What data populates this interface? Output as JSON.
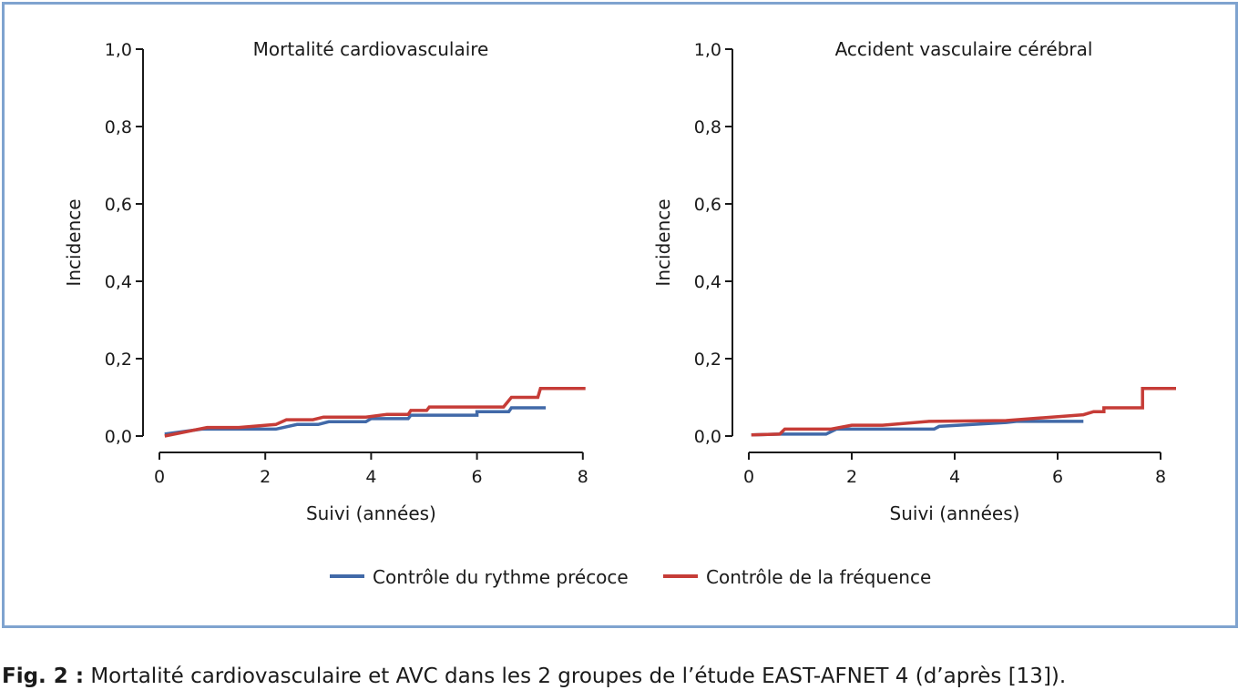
{
  "caption": {
    "label": "Fig. 2 :",
    "text": " Mortalité cardiovasculaire et AVC dans les 2 groupes de l’étude EAST-AFNET 4 (d’après [13])."
  },
  "legend": [
    {
      "label": "Contrôle du rythme précoce",
      "color": "#4169a8"
    },
    {
      "label": "Contrôle de la fréquence",
      "color": "#c63c37"
    }
  ],
  "chart_data": [
    {
      "type": "line",
      "title": "Mortalité cardiovasculaire",
      "xlabel": "Suivi (années)",
      "ylabel": "Incidence",
      "xlim": [
        0,
        8
      ],
      "ylim": [
        0,
        1.0
      ],
      "x_ticks": [
        "0",
        "2",
        "4",
        "6",
        "8"
      ],
      "y_ticks": [
        "0,0",
        "0,2",
        "0,4",
        "0,6",
        "0,8",
        "1,0"
      ],
      "series": [
        {
          "name": "Contrôle du rythme précoce",
          "color": "#4169a8",
          "points": [
            [
              0.1,
              0.005
            ],
            [
              0.8,
              0.018
            ],
            [
              2.2,
              0.018
            ],
            [
              2.6,
              0.03
            ],
            [
              3.0,
              0.03
            ],
            [
              3.2,
              0.037
            ],
            [
              3.9,
              0.037
            ],
            [
              4.0,
              0.045
            ],
            [
              4.7,
              0.045
            ],
            [
              4.75,
              0.054
            ],
            [
              6.0,
              0.054
            ],
            [
              6.0,
              0.063
            ],
            [
              6.6,
              0.063
            ],
            [
              6.65,
              0.073
            ],
            [
              7.3,
              0.073
            ]
          ]
        },
        {
          "name": "Contrôle de la fréquence",
          "color": "#c63c37",
          "points": [
            [
              0.1,
              0.0
            ],
            [
              0.9,
              0.022
            ],
            [
              1.5,
              0.022
            ],
            [
              2.2,
              0.03
            ],
            [
              2.4,
              0.042
            ],
            [
              2.9,
              0.042
            ],
            [
              3.1,
              0.049
            ],
            [
              3.9,
              0.049
            ],
            [
              4.3,
              0.056
            ],
            [
              4.7,
              0.056
            ],
            [
              4.75,
              0.066
            ],
            [
              5.05,
              0.066
            ],
            [
              5.1,
              0.075
            ],
            [
              6.5,
              0.075
            ],
            [
              6.65,
              0.1
            ],
            [
              7.15,
              0.1
            ],
            [
              7.2,
              0.123
            ],
            [
              8.05,
              0.123
            ]
          ]
        }
      ]
    },
    {
      "type": "line",
      "title": "Accident vasculaire cérébral",
      "xlabel": "Suivi (années)",
      "ylabel": "Incidence",
      "xlim": [
        0,
        8
      ],
      "ylim": [
        0,
        1.0
      ],
      "x_ticks": [
        "0",
        "2",
        "4",
        "6",
        "8"
      ],
      "y_ticks": [
        "0,0",
        "0,2",
        "0,4",
        "0,6",
        "0,8",
        "1,0"
      ],
      "series": [
        {
          "name": "Contrôle du rythme précoce",
          "color": "#4169a8",
          "points": [
            [
              0.05,
              0.003
            ],
            [
              0.6,
              0.005
            ],
            [
              1.5,
              0.005
            ],
            [
              1.7,
              0.018
            ],
            [
              3.6,
              0.018
            ],
            [
              3.7,
              0.025
            ],
            [
              5.0,
              0.035
            ],
            [
              5.2,
              0.038
            ],
            [
              6.5,
              0.038
            ]
          ]
        },
        {
          "name": "Contrôle de la fréquence",
          "color": "#c63c37",
          "points": [
            [
              0.05,
              0.003
            ],
            [
              0.6,
              0.005
            ],
            [
              0.7,
              0.018
            ],
            [
              1.6,
              0.018
            ],
            [
              2.0,
              0.028
            ],
            [
              2.6,
              0.028
            ],
            [
              3.5,
              0.038
            ],
            [
              5.0,
              0.04
            ],
            [
              6.5,
              0.055
            ],
            [
              6.7,
              0.063
            ],
            [
              6.9,
              0.063
            ],
            [
              6.9,
              0.073
            ],
            [
              7.65,
              0.073
            ],
            [
              7.65,
              0.123
            ],
            [
              8.3,
              0.123
            ]
          ]
        }
      ]
    }
  ]
}
